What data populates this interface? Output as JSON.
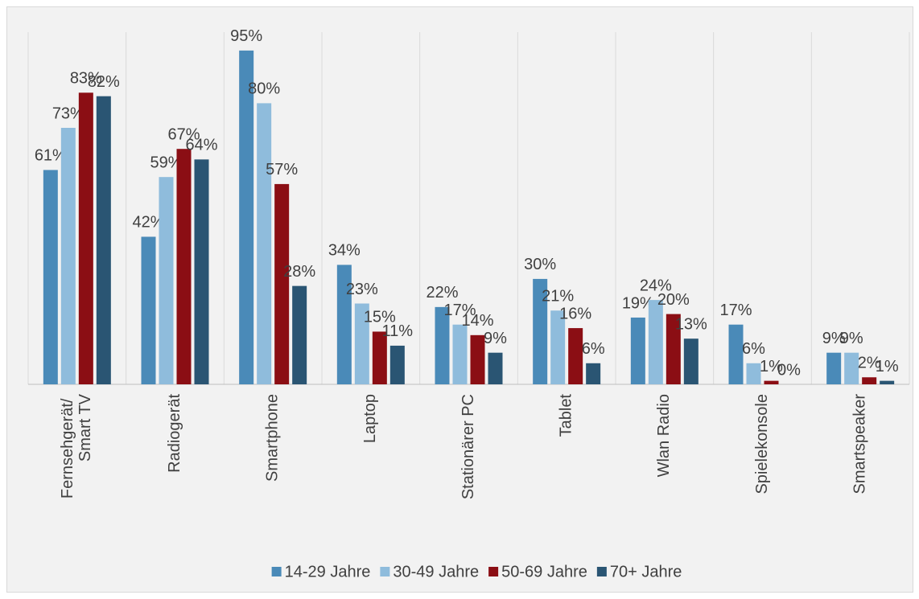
{
  "chart_data": {
    "type": "bar",
    "categories": [
      "Fernsehgerät/\nSmart TV",
      "Radiogerät",
      "Smartphone",
      "Laptop",
      "Stationärer PC",
      "Tablet",
      "Wlan Radio",
      "Spielekonsole",
      "Smartspeaker"
    ],
    "series": [
      {
        "name": "14-29 Jahre",
        "color": "#4a8ab8",
        "values": [
          61,
          42,
          95,
          34,
          22,
          30,
          19,
          17,
          9
        ],
        "value_labels": [
          "61%",
          "42%",
          "95%",
          "34%",
          "22%",
          "30%",
          "19%",
          "17%",
          "9%"
        ]
      },
      {
        "name": "30-49 Jahre",
        "color": "#8fbcdc",
        "values": [
          73,
          59,
          80,
          23,
          17,
          21,
          24,
          6,
          9
        ],
        "value_labels": [
          "73%",
          "59%",
          "80%",
          "23%",
          "17%",
          "21%",
          "24%",
          "6%",
          "9%"
        ]
      },
      {
        "name": "50-69 Jahre",
        "color": "#8b0e14",
        "values": [
          83,
          67,
          57,
          15,
          14,
          16,
          20,
          1,
          2
        ],
        "value_labels": [
          "83%",
          "67%",
          "57%",
          "15%",
          "14%",
          "16%",
          "20%",
          "1%",
          "2%"
        ]
      },
      {
        "name": "70+ Jahre",
        "color": "#2a5573",
        "values": [
          82,
          64,
          28,
          11,
          9,
          6,
          13,
          0,
          1
        ],
        "value_labels": [
          "82%",
          "64%",
          "28%",
          "11%",
          "9%",
          "6%",
          "13%",
          "0%",
          "1%"
        ]
      }
    ],
    "ylim": [
      0,
      100
    ],
    "legend": "bottom"
  }
}
